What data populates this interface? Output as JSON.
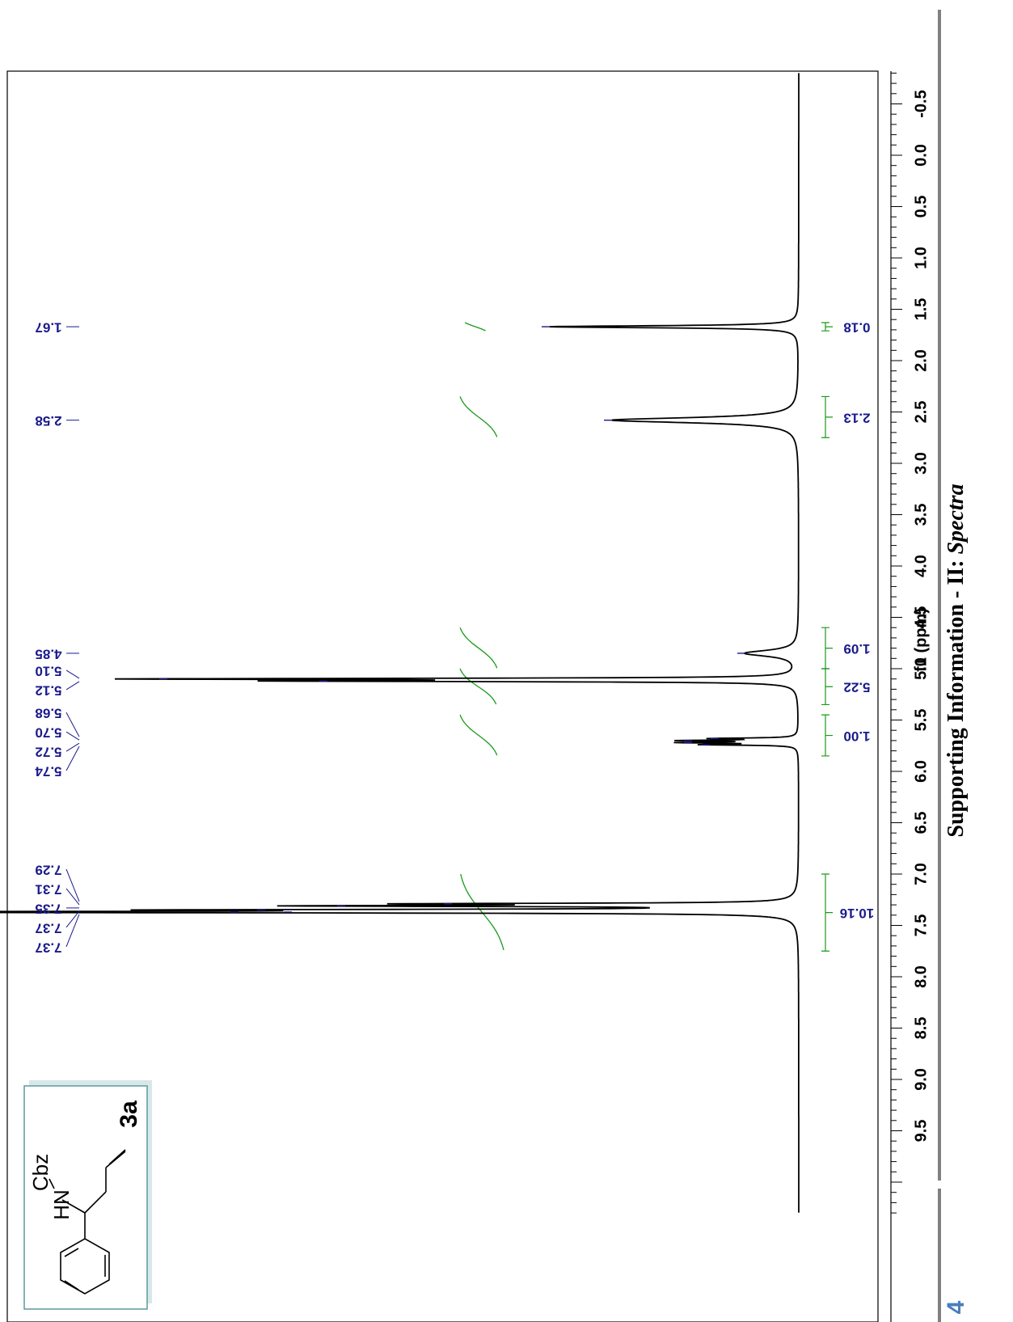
{
  "page": {
    "side_title_main": "Supporting Information - II: ",
    "side_title_italic": "Spectra",
    "page_number": "4"
  },
  "structure": {
    "nh_label": "HN",
    "cbz_label": "Cbz",
    "compound_id": "3a"
  },
  "colors": {
    "spectrum": "#000000",
    "integral_curve": "#1a9a1a",
    "peak_labels": "#1a1a8c",
    "integral_values": "#1a1a8c",
    "page_number": "#4a7ebb",
    "structure_box_border": "#5a9aa0"
  },
  "chart_data": {
    "type": "line",
    "title": "",
    "xlabel": "f1 (ppm)",
    "ylabel": "",
    "x_range_ppm": [
      -0.8,
      10.3
    ],
    "x_ticks": [
      "-0.5",
      "0.0",
      "0.5",
      "1.0",
      "1.5",
      "2.0",
      "2.5",
      "3.0",
      "3.5",
      "4.0",
      "4.5",
      "5.0",
      "5.5",
      "6.0",
      "6.5",
      "7.0",
      "7.5",
      "8.0",
      "8.5",
      "9.0",
      "9.5"
    ],
    "orientation": "rotated 90 degrees",
    "peaks": [
      {
        "ppm": 1.67,
        "intensity": 0.28
      },
      {
        "ppm": 2.58,
        "intensity": 0.21
      },
      {
        "ppm": 4.85,
        "intensity": 0.06
      },
      {
        "ppm": 5.1,
        "intensity": 0.71
      },
      {
        "ppm": 5.12,
        "intensity": 0.53
      },
      {
        "ppm": 5.68,
        "intensity": 0.09
      },
      {
        "ppm": 5.7,
        "intensity": 0.12
      },
      {
        "ppm": 5.72,
        "intensity": 0.12
      },
      {
        "ppm": 5.74,
        "intensity": 0.1
      },
      {
        "ppm": 7.29,
        "intensity": 0.39
      },
      {
        "ppm": 7.31,
        "intensity": 0.51
      },
      {
        "ppm": 7.35,
        "intensity": 0.6
      },
      {
        "ppm": 7.37,
        "intensity": 0.57
      },
      {
        "ppm": 7.37,
        "intensity": 0.63
      }
    ],
    "peak_label_groups": [
      {
        "labels": [
          "1.67"
        ]
      },
      {
        "labels": [
          "2.58"
        ]
      },
      {
        "labels": [
          "4.85"
        ]
      },
      {
        "labels": [
          "5.10",
          "5.12"
        ]
      },
      {
        "labels": [
          "5.68",
          "5.70",
          "5.72",
          "5.74"
        ]
      },
      {
        "labels": [
          "7.29",
          "7.31",
          "7.35",
          "7.37",
          "7.37"
        ]
      }
    ],
    "integrals": [
      {
        "from_ppm": 1.63,
        "to_ppm": 1.71,
        "value": "0.18"
      },
      {
        "from_ppm": 2.35,
        "to_ppm": 2.75,
        "value": "2.13"
      },
      {
        "from_ppm": 4.6,
        "to_ppm": 5.0,
        "value": "1.09"
      },
      {
        "from_ppm": 5.0,
        "to_ppm": 5.35,
        "value": "5.22"
      },
      {
        "from_ppm": 5.45,
        "to_ppm": 5.85,
        "value": "1.00"
      },
      {
        "from_ppm": 7.0,
        "to_ppm": 7.75,
        "value": "10.16"
      }
    ]
  }
}
